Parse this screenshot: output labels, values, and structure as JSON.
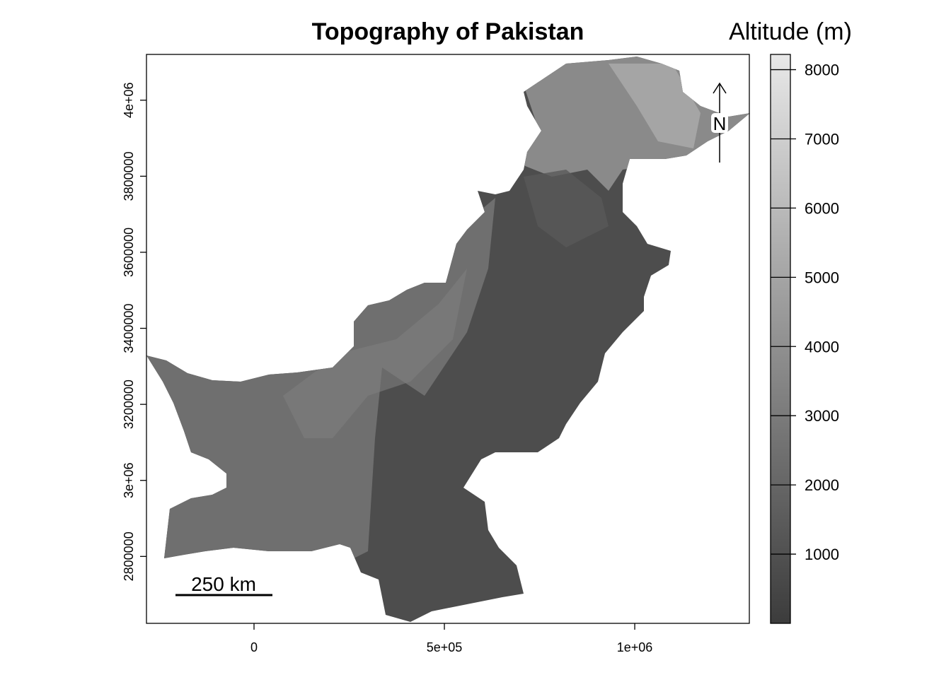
{
  "chart_data": {
    "type": "raster-map",
    "title": "Topography of Pakistan",
    "xlim": [
      -282500,
      1301000
    ],
    "ylim": [
      2624000,
      4120400
    ],
    "xticks": [
      0,
      {
        "value": 500000,
        "label": "5e+05"
      },
      {
        "value": 1000000,
        "label": "1e+06"
      }
    ],
    "yticks": [
      {
        "value": 2800000,
        "label": "2800000"
      },
      {
        "value": 3000000,
        "label": "3e+06"
      },
      {
        "value": 3200000,
        "label": "3200000"
      },
      {
        "value": 3400000,
        "label": "3400000"
      },
      {
        "value": 3600000,
        "label": "3600000"
      },
      {
        "value": 3800000,
        "label": "3800000"
      },
      {
        "value": 4000000,
        "label": "4e+06"
      }
    ],
    "colorbar": {
      "title": "Altitude (m)",
      "lim": [
        0,
        8220
      ],
      "ticks": [
        1000,
        2000,
        3000,
        4000,
        5000,
        6000,
        7000,
        8000
      ],
      "colors": [
        "#3c3c3c",
        "#e8e8e8"
      ]
    },
    "scale_bar": "250 km",
    "north_arrow": "N"
  }
}
